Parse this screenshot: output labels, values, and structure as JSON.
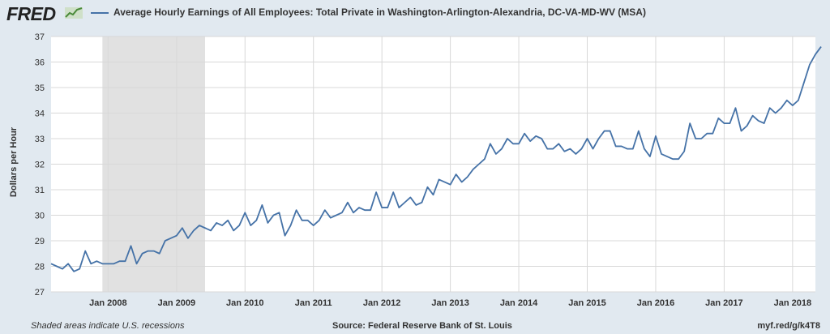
{
  "header": {
    "logo": "FRED",
    "logo_icon": "line-chart-icon",
    "series_title": "Average Hourly Earnings of All Employees: Total Private in Washington-Arlington-Alexandria, DC-VA-MD-WV (MSA)"
  },
  "footer": {
    "note": "Shaded areas indicate U.S. recessions",
    "source": "Source: Federal Reserve Bank of St. Louis",
    "link": "myf.red/g/k4T8"
  },
  "colors": {
    "background": "#e1e9f0",
    "plot_background": "#ffffff",
    "line": "#4572a7",
    "recession": "#e1e1e1",
    "grid": "#d8d8d8"
  },
  "chart_data": {
    "type": "line",
    "title": "Average Hourly Earnings of All Employees: Total Private in Washington-Arlington-Alexandria, DC-VA-MD-WV (MSA)",
    "ylabel": "Dollars per Hour",
    "xlabel": "",
    "ylim": [
      27,
      37
    ],
    "yticks": [
      27,
      28,
      29,
      30,
      31,
      32,
      33,
      34,
      35,
      36,
      37
    ],
    "xlim": [
      "2007-03",
      "2018-05"
    ],
    "xticks": [
      "Jan 2008",
      "Jan 2009",
      "Jan 2010",
      "Jan 2011",
      "Jan 2012",
      "Jan 2013",
      "Jan 2014",
      "Jan 2015",
      "Jan 2016",
      "Jan 2017",
      "Jan 2018"
    ],
    "grid": true,
    "recessions": [
      {
        "start": "2007-12",
        "end": "2009-06"
      }
    ],
    "series": [
      {
        "start": "2007-03",
        "frequency": "monthly",
        "values": [
          28.1,
          28.0,
          27.9,
          28.1,
          27.8,
          27.9,
          28.6,
          28.1,
          28.2,
          28.1,
          28.1,
          28.1,
          28.2,
          28.2,
          28.8,
          28.1,
          28.5,
          28.6,
          28.6,
          28.5,
          29.0,
          29.1,
          29.2,
          29.5,
          29.1,
          29.4,
          29.6,
          29.5,
          29.4,
          29.7,
          29.6,
          29.8,
          29.4,
          29.6,
          30.1,
          29.6,
          29.8,
          30.4,
          29.7,
          30.0,
          30.1,
          29.2,
          29.6,
          30.2,
          29.8,
          29.8,
          29.6,
          29.8,
          30.2,
          29.9,
          30.0,
          30.1,
          30.5,
          30.1,
          30.3,
          30.2,
          30.2,
          30.9,
          30.3,
          30.3,
          30.9,
          30.3,
          30.5,
          30.7,
          30.4,
          30.5,
          31.1,
          30.8,
          31.4,
          31.3,
          31.2,
          31.6,
          31.3,
          31.5,
          31.8,
          32.0,
          32.2,
          32.8,
          32.4,
          32.6,
          33.0,
          32.8,
          32.8,
          33.2,
          32.9,
          33.1,
          33.0,
          32.6,
          32.6,
          32.8,
          32.5,
          32.6,
          32.4,
          32.6,
          33.0,
          32.6,
          33.0,
          33.3,
          33.3,
          32.7,
          32.7,
          32.6,
          32.6,
          33.3,
          32.6,
          32.3,
          33.1,
          32.4,
          32.3,
          32.2,
          32.2,
          32.5,
          33.6,
          33.0,
          33.0,
          33.2,
          33.2,
          33.8,
          33.6,
          33.6,
          34.2,
          33.3,
          33.5,
          33.9,
          33.7,
          33.6,
          34.2,
          34.0,
          34.2,
          34.5,
          34.3,
          34.5,
          35.2,
          35.9,
          36.3,
          36.6
        ]
      }
    ]
  }
}
